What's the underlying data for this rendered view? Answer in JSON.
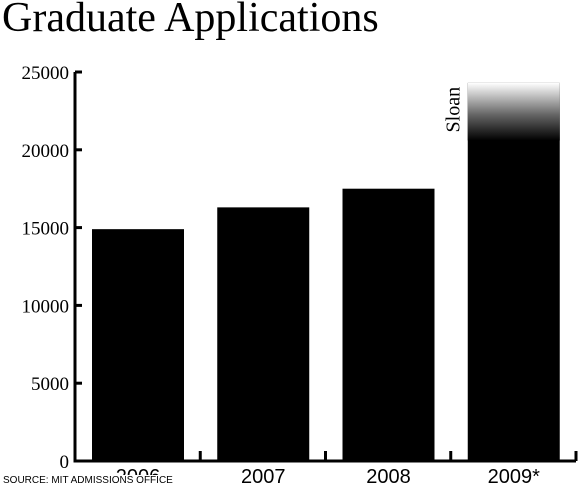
{
  "chart_data": {
    "type": "bar",
    "title": "Graduate Applications",
    "xlabel": "",
    "ylabel": "",
    "categories": [
      "2006",
      "2007",
      "2008",
      "2009*"
    ],
    "values": [
      14900,
      16300,
      17500,
      24300
    ],
    "ylim": [
      0,
      25000
    ],
    "yticks": [
      "0",
      "5000",
      "10000",
      "15000",
      "20000",
      "25000"
    ],
    "grid": false,
    "bar_color": "#000000",
    "annotations": [
      {
        "text": "Sloan",
        "category": "2009*",
        "range": [
          20600,
          24300
        ]
      }
    ]
  },
  "source": "SOURCE: MIT ADMISSIONS OFFICE"
}
